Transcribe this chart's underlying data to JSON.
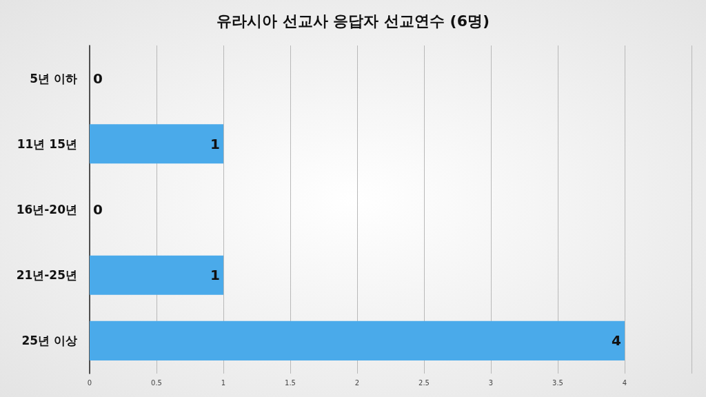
{
  "chart_data": {
    "type": "bar",
    "orientation": "horizontal",
    "title": "유라시아 선교사 응답자 선교연수 (6명)",
    "categories": [
      "5년 이하",
      "11년 15년",
      "16년-20년",
      "21년-25년",
      "25년 이상"
    ],
    "values": [
      0,
      1,
      0,
      1,
      4
    ],
    "color": "#4aaaea",
    "data_labels": true,
    "grid": "x",
    "xlim": [
      0,
      4.5
    ],
    "xticks": [
      0,
      0.5,
      1,
      1.5,
      2,
      2.5,
      3,
      3.5,
      4,
      {
        "value": 4.5,
        "label": null
      }
    ]
  }
}
